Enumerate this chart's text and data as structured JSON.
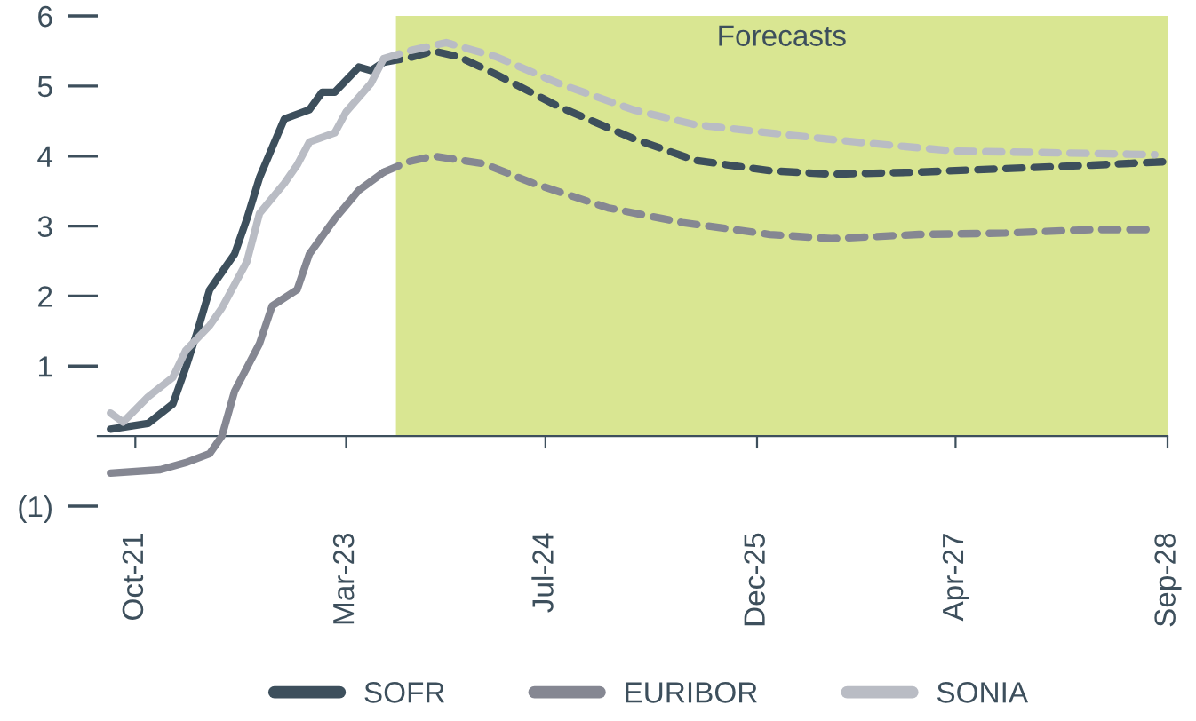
{
  "chart_data": {
    "type": "line",
    "legend": "bottom",
    "line_style": "solid",
    "xlim": [
      "2021-07",
      "2028-09"
    ],
    "ylim": [
      -1,
      6
    ],
    "xticks": [
      {
        "value": "2021-10",
        "label": "Oct-21"
      },
      {
        "value": "2023-03",
        "label": "Mar-23"
      },
      {
        "value": "2024-07",
        "label": "Jul-24"
      },
      {
        "value": "2025-12",
        "label": "Dec-25"
      },
      {
        "value": "2027-04",
        "label": "Apr-27"
      },
      {
        "value": "2028-09",
        "label": "Sep-28"
      }
    ],
    "yticks": [
      6,
      5,
      4,
      3,
      2,
      1,
      {
        "value": -1,
        "label": "(1)"
      }
    ],
    "bands": [
      {
        "axis": "x",
        "from": "2023-07",
        "to": "2028-09",
        "label": "Forecasts",
        "color": "#d9e692"
      }
    ],
    "series": [
      {
        "name": "SOFR",
        "color": "#3d4f5c",
        "x": [
          "2021-08",
          "2021-11",
          "2022-01",
          "2022-02",
          "2022-03",
          "2022-04",
          "2022-06",
          "2022-07",
          "2022-08",
          "2022-09",
          "2022-10",
          "2022-12",
          "2023-01",
          "2023-02",
          "2023-04",
          "2023-05",
          "2023-06"
        ],
        "values": [
          0.1,
          0.18,
          0.46,
          0.97,
          1.48,
          2.09,
          2.6,
          3.1,
          3.69,
          4.12,
          4.53,
          4.66,
          4.91,
          4.91,
          5.27,
          5.22,
          5.34
        ]
      },
      {
        "color": "#3d4f5c",
        "line_style": "dashed",
        "x": [
          "2023-06",
          "2023-08",
          "2023-10",
          "2023-12",
          "2024-03",
          "2024-08",
          "2025-02",
          "2025-07",
          "2026-01",
          "2026-06",
          "2027-01",
          "2027-08",
          "2028-03",
          "2028-09"
        ],
        "values": [
          5.34,
          5.4,
          5.5,
          5.42,
          5.17,
          4.71,
          4.25,
          3.94,
          3.79,
          3.74,
          3.77,
          3.82,
          3.87,
          3.92
        ]
      },
      {
        "name": "EURIBOR",
        "color": "#858792",
        "x": [
          "2021-08",
          "2021-12",
          "2022-02",
          "2022-04",
          "2022-05",
          "2022-06",
          "2022-08",
          "2022-09",
          "2022-11",
          "2022-12",
          "2023-02",
          "2023-04",
          "2023-06"
        ],
        "values": [
          -0.53,
          -0.48,
          -0.38,
          -0.25,
          0,
          0.64,
          1.32,
          1.86,
          2.09,
          2.6,
          3.1,
          3.51,
          3.77
        ]
      },
      {
        "color": "#858792",
        "line_style": "dashed",
        "x": [
          "2023-06",
          "2023-08",
          "2023-10",
          "2024-02",
          "2024-06",
          "2024-12",
          "2025-06",
          "2026-01",
          "2026-06",
          "2027-01",
          "2027-08",
          "2028-03",
          "2028-08"
        ],
        "values": [
          3.77,
          3.92,
          4.0,
          3.89,
          3.61,
          3.26,
          3.05,
          2.88,
          2.82,
          2.88,
          2.9,
          2.95,
          2.95
        ]
      },
      {
        "name": "SONIA",
        "color": "#b9bcc4",
        "x": [
          "2021-08",
          "2021-09",
          "2021-11",
          "2022-01",
          "2022-02",
          "2022-04",
          "2022-05",
          "2022-07",
          "2022-08",
          "2022-10",
          "2022-11",
          "2022-12",
          "2023-02",
          "2023-03",
          "2023-05",
          "2023-06"
        ],
        "values": [
          0.33,
          0.2,
          0.56,
          0.84,
          1.22,
          1.58,
          1.83,
          2.49,
          3.18,
          3.61,
          3.87,
          4.2,
          4.33,
          4.63,
          5.04,
          5.39
        ]
      },
      {
        "color": "#b9bcc4",
        "line_style": "dashed",
        "x": [
          "2023-06",
          "2023-08",
          "2023-11",
          "2024-03",
          "2024-08",
          "2025-02",
          "2025-07",
          "2026-01",
          "2026-08",
          "2027-04",
          "2027-11",
          "2028-08"
        ],
        "values": [
          5.39,
          5.5,
          5.62,
          5.42,
          5.04,
          4.66,
          4.45,
          4.33,
          4.2,
          4.07,
          4.05,
          4.02
        ]
      }
    ]
  }
}
